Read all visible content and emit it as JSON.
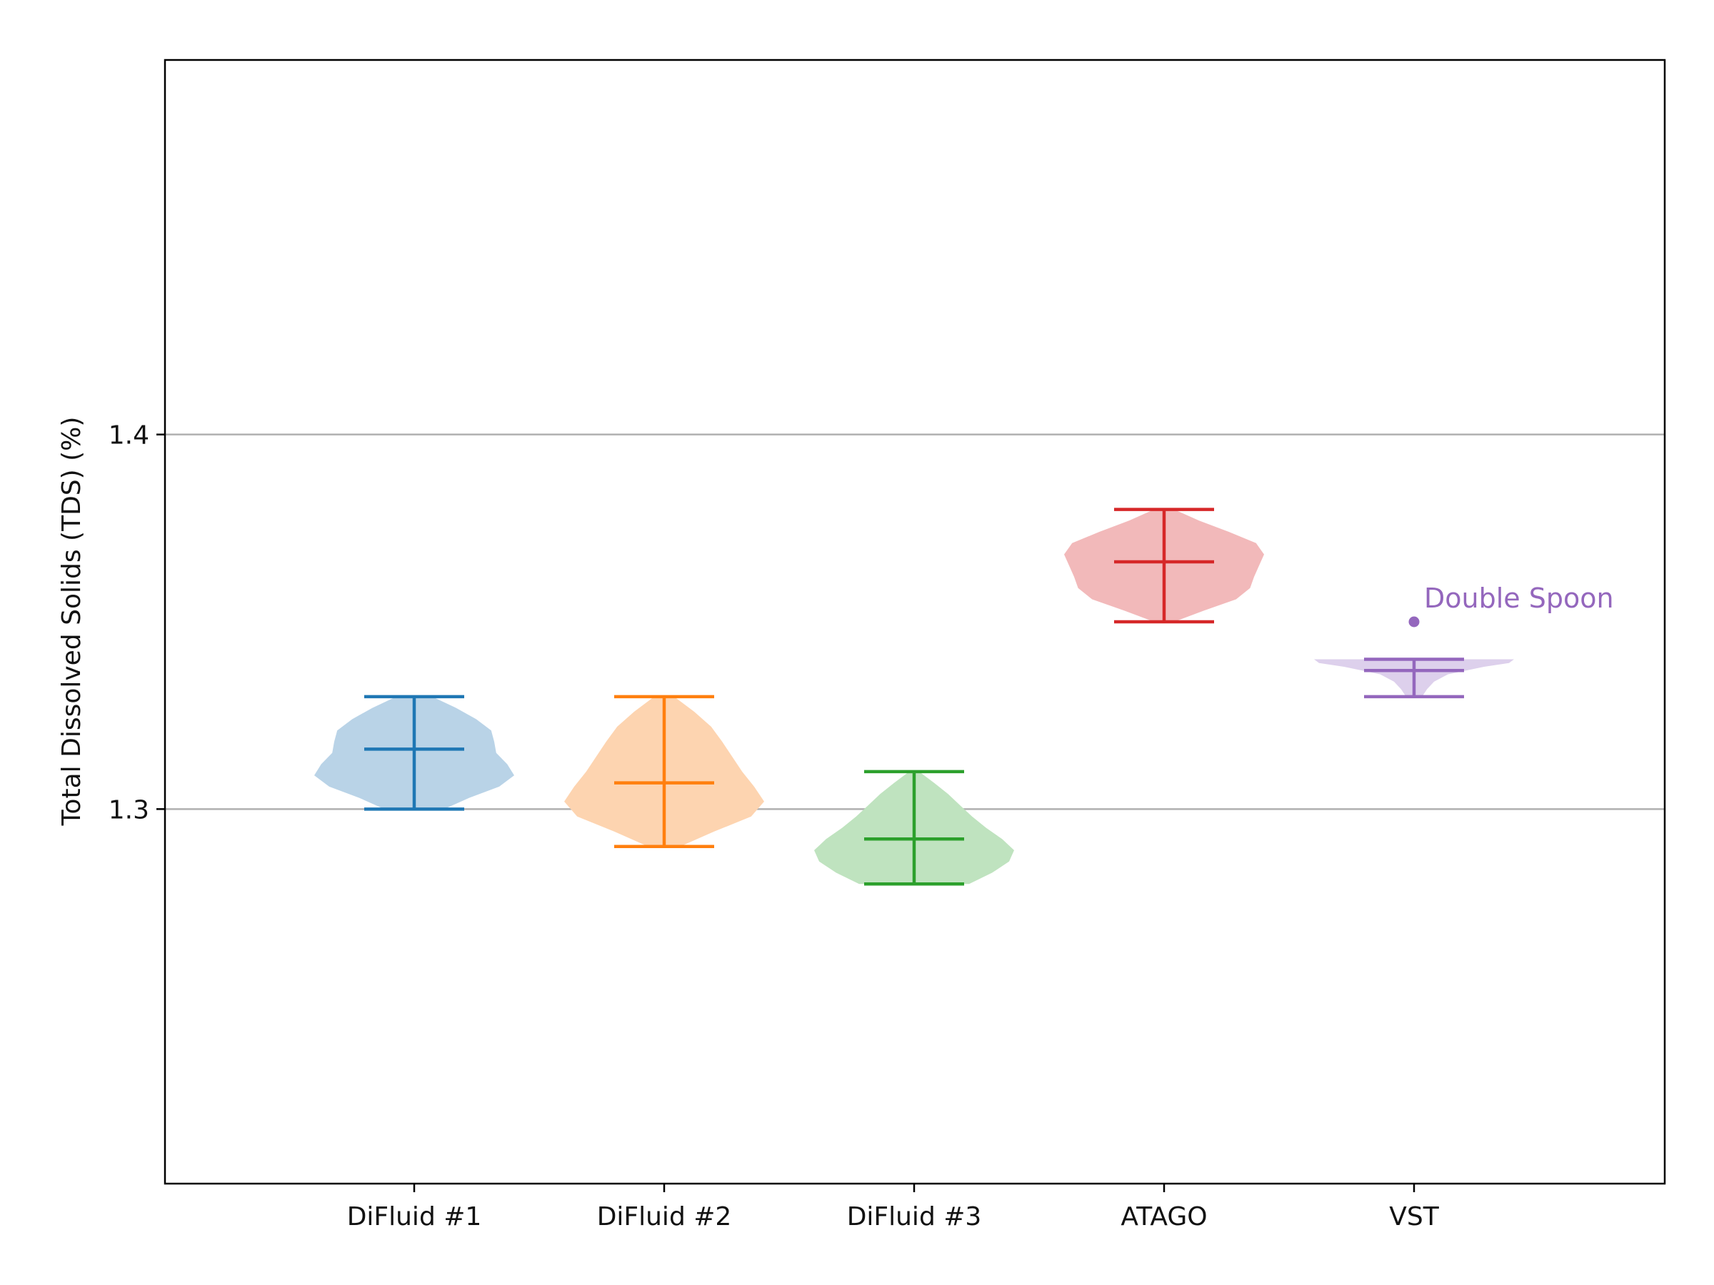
{
  "chart_data": {
    "type": "violin",
    "ylabel": "Total Dissolved Solids (TDS) (%)",
    "xlabel": "",
    "title": "",
    "ylim": [
      1.2,
      1.5
    ],
    "yticks": [
      1.3,
      1.4
    ],
    "ytick_labels": [
      "1.3",
      "1.4"
    ],
    "grid": "horizontal",
    "categories": [
      "DiFluid #1",
      "DiFluid #2",
      "DiFluid #3",
      "ATAGO",
      "VST"
    ],
    "series": [
      {
        "category": "DiFluid #1",
        "color": "#1f77b4",
        "fill": "#b9d3e7",
        "min": 1.3,
        "max": 1.33,
        "mean": 1.316,
        "profile": [
          [
            1.3,
            0.3
          ],
          [
            1.303,
            0.55
          ],
          [
            1.306,
            0.85
          ],
          [
            1.309,
            1.0
          ],
          [
            1.312,
            0.93
          ],
          [
            1.315,
            0.82
          ],
          [
            1.318,
            0.8
          ],
          [
            1.321,
            0.77
          ],
          [
            1.324,
            0.62
          ],
          [
            1.327,
            0.42
          ],
          [
            1.33,
            0.18
          ]
        ]
      },
      {
        "category": "DiFluid #2",
        "color": "#ff7f0e",
        "fill": "#fdd4b0",
        "min": 1.29,
        "max": 1.33,
        "mean": 1.307,
        "profile": [
          [
            1.29,
            0.16
          ],
          [
            1.294,
            0.5
          ],
          [
            1.298,
            0.87
          ],
          [
            1.302,
            1.0
          ],
          [
            1.306,
            0.9
          ],
          [
            1.31,
            0.78
          ],
          [
            1.314,
            0.68
          ],
          [
            1.318,
            0.58
          ],
          [
            1.322,
            0.47
          ],
          [
            1.326,
            0.3
          ],
          [
            1.33,
            0.1
          ]
        ]
      },
      {
        "category": "DiFluid #3",
        "color": "#2ca02c",
        "fill": "#bfe3bf",
        "min": 1.28,
        "max": 1.31,
        "mean": 1.292,
        "profile": [
          [
            1.28,
            0.55
          ],
          [
            1.283,
            0.78
          ],
          [
            1.286,
            0.95
          ],
          [
            1.289,
            1.0
          ],
          [
            1.292,
            0.88
          ],
          [
            1.295,
            0.72
          ],
          [
            1.298,
            0.58
          ],
          [
            1.301,
            0.46
          ],
          [
            1.304,
            0.34
          ],
          [
            1.307,
            0.2
          ],
          [
            1.31,
            0.05
          ]
        ]
      },
      {
        "category": "ATAGO",
        "color": "#d62728",
        "fill": "#f2b9ba",
        "min": 1.35,
        "max": 1.38,
        "mean": 1.366,
        "profile": [
          [
            1.35,
            0.1
          ],
          [
            1.353,
            0.4
          ],
          [
            1.356,
            0.72
          ],
          [
            1.359,
            0.86
          ],
          [
            1.362,
            0.9
          ],
          [
            1.365,
            0.95
          ],
          [
            1.368,
            1.0
          ],
          [
            1.371,
            0.92
          ],
          [
            1.374,
            0.65
          ],
          [
            1.377,
            0.35
          ],
          [
            1.38,
            0.1
          ]
        ]
      },
      {
        "category": "VST",
        "color": "#9467bd",
        "fill": "#ddd0ec",
        "min": 1.33,
        "max": 1.34,
        "mean": 1.337,
        "profile": [
          [
            1.33,
            0.08
          ],
          [
            1.332,
            0.13
          ],
          [
            1.334,
            0.2
          ],
          [
            1.336,
            0.34
          ],
          [
            1.338,
            0.7
          ],
          [
            1.339,
            0.95
          ],
          [
            1.34,
            1.0
          ]
        ]
      }
    ],
    "annotations": [
      {
        "category": "VST",
        "y": 1.35,
        "text": "Double Spoon",
        "color": "#9467bd",
        "marker": "point"
      }
    ]
  }
}
